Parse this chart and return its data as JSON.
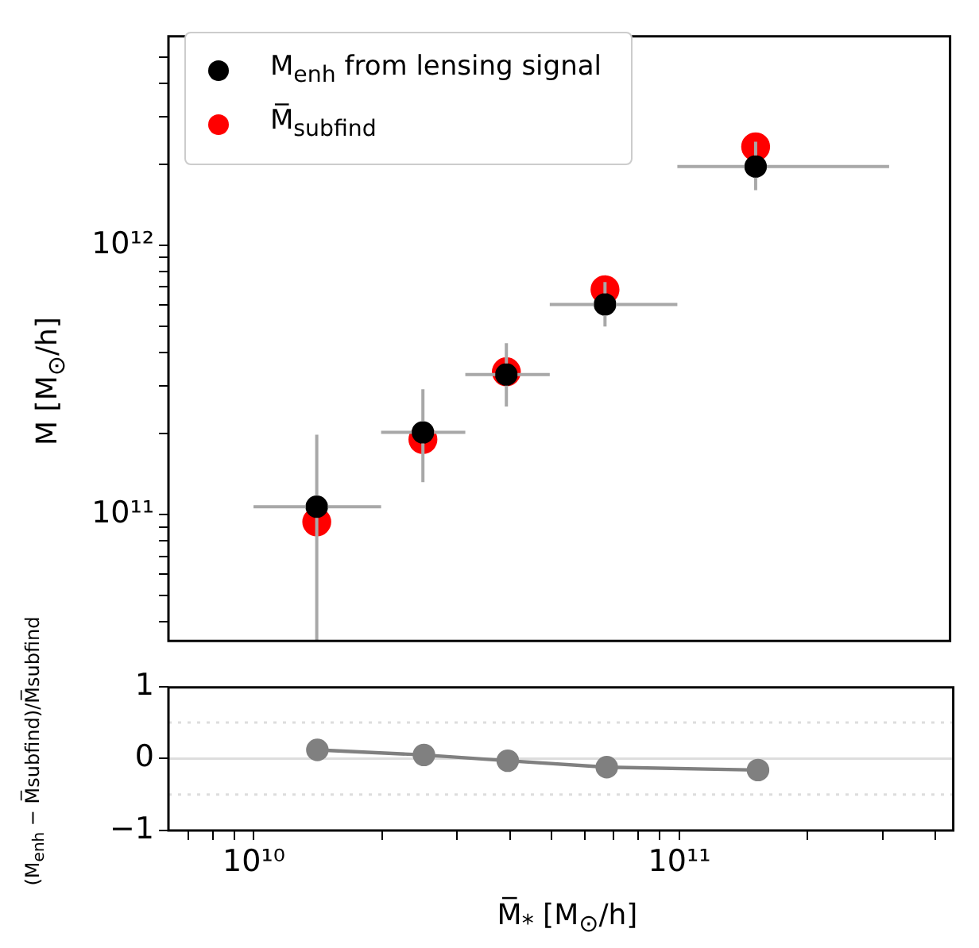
{
  "chart_data": [
    {
      "type": "scatter",
      "ylabel": "M [M$_{⊙}$/h]",
      "log": "xy",
      "legend": "top left",
      "tick_labels": "y",
      "marker": "circle",
      "xlim": [
        6300000000.0,
        440000000000.0
      ],
      "ylim": [
        34000000000.0,
        6000000000000.0
      ],
      "yticks": [
        {
          "value": 40000000000.0,
          "label": null
        },
        {
          "value": 50000000000.0,
          "label": null
        },
        {
          "value": 60000000000.0,
          "label": null
        },
        {
          "value": 70000000000.0,
          "label": null
        },
        {
          "value": 80000000000.0,
          "label": null
        },
        {
          "value": 90000000000.0,
          "label": null
        },
        {
          "value": 100000000000.0,
          "label": "10¹¹"
        },
        {
          "value": 200000000000.0,
          "label": null
        },
        {
          "value": 300000000000.0,
          "label": null
        },
        {
          "value": 400000000000.0,
          "label": null
        },
        {
          "value": 500000000000.0,
          "label": null
        },
        {
          "value": 600000000000.0,
          "label": null
        },
        {
          "value": 700000000000.0,
          "label": null
        },
        {
          "value": 800000000000.0,
          "label": null
        },
        {
          "value": 900000000000.0,
          "label": null
        },
        {
          "value": 1000000000000.0,
          "label": "10¹²"
        },
        {
          "value": 2000000000000.0,
          "label": null
        },
        {
          "value": 3000000000000.0,
          "label": null
        },
        {
          "value": 4000000000000.0,
          "label": null
        },
        {
          "value": 5000000000000.0,
          "label": null
        }
      ],
      "series": [
        {
          "name": "M$_{enh}$ from lensing signal",
          "color": "#000000",
          "x": [
            14100000000.0,
            25100000000.0,
            39500000000.0,
            67500000000.0,
            153000000000.0
          ],
          "values": [
            107000000000.0,
            202000000000.0,
            331000000000.0,
            603000000000.0,
            1960000000000.0
          ],
          "xerrors": [
            [
              10000000000.0,
              20000000000.0
            ],
            [
              20000000000.0,
              31600000000.0
            ],
            [
              31600000000.0,
              50000000000.0
            ],
            [
              50000000000.0,
              100000000000.0
            ],
            [
              100000000000.0,
              316000000000.0
            ]
          ],
          "errors": [
            [
              34000000000.0,
              198000000000.0
            ],
            [
              132000000000.0,
              292000000000.0
            ],
            [
              252000000000.0,
              433000000000.0
            ],
            [
              499000000000.0,
              730000000000.0
            ],
            [
              1600000000000.0,
              2420000000000.0
            ]
          ]
        },
        {
          "name": "M̅$_{subfind}$",
          "color": "#ff0000",
          "x": [
            14100000000.0,
            25100000000.0,
            39500000000.0,
            67500000000.0,
            153000000000.0
          ],
          "values": [
            94000000000.0,
            190000000000.0,
            339000000000.0,
            684000000000.0,
            2320000000000.0
          ]
        }
      ]
    },
    {
      "type": "line",
      "xlabel": "M̅$_{*}$ [M$_{⊙}$/h]",
      "ylabel": "(M$_{enh}$ − M̅subfind)/M̅subfind",
      "log": "x",
      "marker": "circle",
      "xlim": [
        6300000000.0,
        440000000000.0
      ],
      "ylim": [
        -1,
        1
      ],
      "yticks": [
        {
          "value": -1,
          "label": "−1"
        },
        0,
        1
      ],
      "xticks": [
        {
          "value": 7000000000.0,
          "label": null
        },
        {
          "value": 8000000000.0,
          "label": null
        },
        {
          "value": 9000000000.0,
          "label": null
        },
        {
          "value": 10000000000.0,
          "label": "10¹⁰"
        },
        {
          "value": 20000000000.0,
          "label": null
        },
        {
          "value": 30000000000.0,
          "label": null
        },
        {
          "value": 40000000000.0,
          "label": null
        },
        {
          "value": 50000000000.0,
          "label": null
        },
        {
          "value": 60000000000.0,
          "label": null
        },
        {
          "value": 70000000000.0,
          "label": null
        },
        {
          "value": 80000000000.0,
          "label": null
        },
        {
          "value": 90000000000.0,
          "label": null
        },
        {
          "value": 100000000000.0,
          "label": "10¹¹"
        },
        {
          "value": 200000000000.0,
          "label": null
        },
        {
          "value": 300000000000.0,
          "label": null
        },
        {
          "value": 400000000000.0,
          "label": null
        }
      ],
      "x": [
        14100000000.0,
        25100000000.0,
        39500000000.0,
        67500000000.0,
        153000000000.0
      ],
      "series": [
        {
          "color": "#808080",
          "values": [
            0.12,
            0.05,
            -0.03,
            -0.12,
            -0.16
          ]
        }
      ],
      "ref_lines": [
        {
          "axis": "y",
          "value": 0,
          "color": "#dddddd",
          "line_style": "solid"
        },
        {
          "axis": "y",
          "value": 0.5,
          "color": "#dddddd",
          "line_style": "dotted"
        },
        {
          "axis": "y",
          "value": -0.5,
          "color": "#dddddd",
          "line_style": "dotted"
        }
      ]
    }
  ]
}
